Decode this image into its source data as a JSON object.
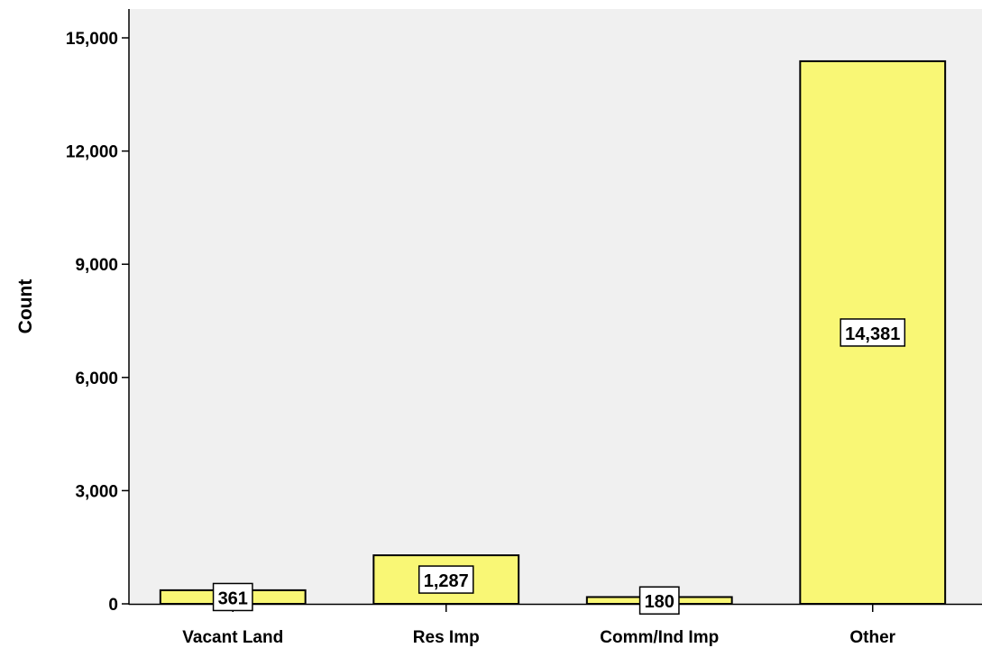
{
  "chart_data": {
    "type": "bar",
    "categories": [
      "Vacant Land",
      "Res Imp",
      "Comm/Ind Imp",
      "Other"
    ],
    "values": [
      361,
      1287,
      180,
      14381
    ],
    "data_labels": [
      "361",
      "1,287",
      "180",
      "14,381"
    ],
    "title": "",
    "xlabel": "",
    "ylabel": "Count",
    "ylim": [
      0,
      15000
    ],
    "yticks": [
      0,
      3000,
      6000,
      9000,
      12000,
      15000
    ],
    "ytick_labels": [
      "0",
      "3,000",
      "6,000",
      "9,000",
      "12,000",
      "15,000"
    ],
    "grid": false,
    "legend": "none",
    "colors": {
      "bar_fill": "#f9f775",
      "bar_stroke": "#000000",
      "plot_background": "#f0f0f0",
      "axis": "#000000",
      "label_box_fill": "#ffffff"
    }
  }
}
